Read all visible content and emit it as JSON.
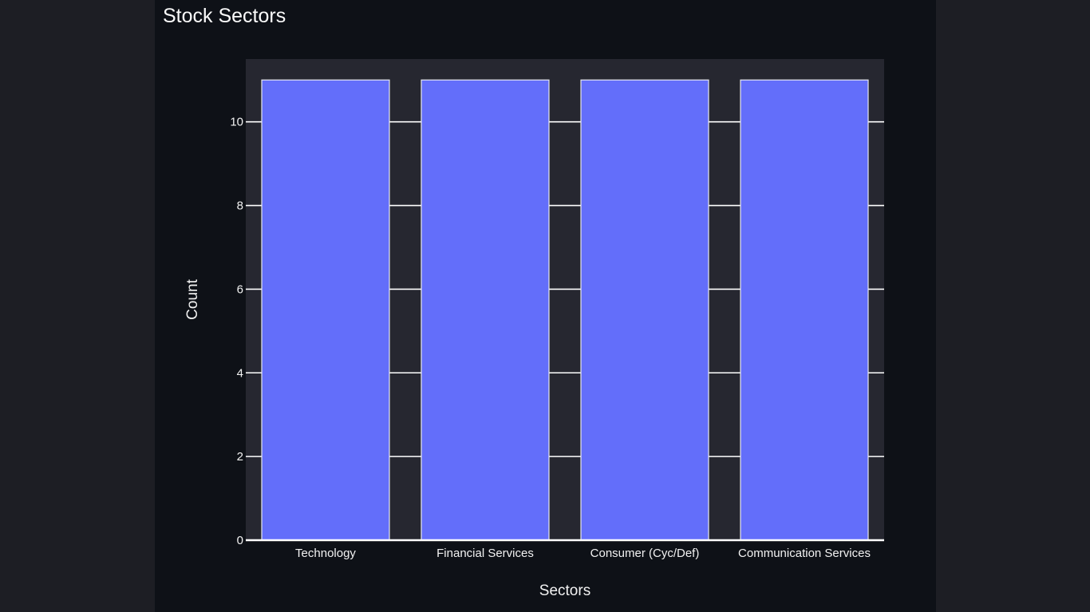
{
  "chart_data": {
    "type": "bar",
    "title": "Stock Sectors",
    "categories": [
      "Technology",
      "Financial Services",
      "Consumer (Cyc/Def)",
      "Communication Services"
    ],
    "values": [
      11,
      11,
      11,
      11
    ],
    "xlabel": "Sectors",
    "ylabel": "Count",
    "ylim": [
      0,
      11.5
    ],
    "yticks": [
      0,
      2,
      4,
      6,
      8,
      10
    ],
    "grid": true,
    "colors": {
      "bar": "#636efa",
      "bar_outline": "#e8e8f0",
      "plot_background": "#262730",
      "grid": "#ffffff",
      "page_background": "#0e1117",
      "outer_background": "#1d1e24",
      "text": "#f2f2f2"
    }
  }
}
